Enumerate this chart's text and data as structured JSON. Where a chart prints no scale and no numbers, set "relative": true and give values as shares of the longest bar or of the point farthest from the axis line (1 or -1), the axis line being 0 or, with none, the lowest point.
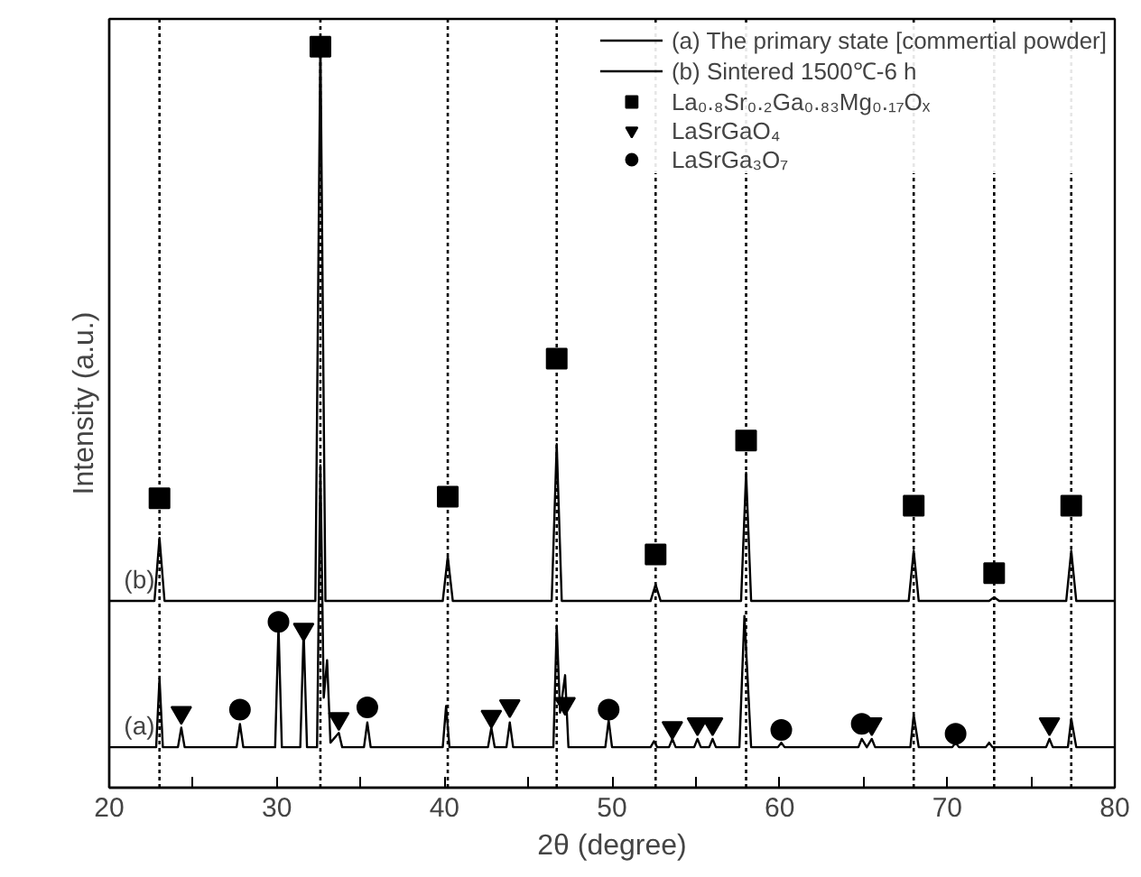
{
  "chart_data": {
    "type": "line",
    "relative": true,
    "xlabel": "2θ (degree)",
    "ylabel": "Intensity (a.u.)",
    "xlim": [
      20,
      80
    ],
    "xticks": [
      20,
      {
        "value": 25,
        "label": null
      },
      30,
      {
        "value": 35,
        "label": null
      },
      40,
      {
        "value": 45,
        "label": null
      },
      50,
      {
        "value": 55,
        "label": null
      },
      60,
      {
        "value": 65,
        "label": null
      },
      70,
      {
        "value": 75,
        "label": null
      },
      80
    ],
    "grid": false,
    "legend": "top right",
    "series": [
      {
        "name": "(a) The primary state [commertial powder]",
        "color": "#000000",
        "x": [
          20,
          22.8,
          23.0,
          23.2,
          24.1,
          24.3,
          24.5,
          27.6,
          27.8,
          28.0,
          29.9,
          30.1,
          30.3,
          31.4,
          31.6,
          31.8,
          32.4,
          32.6,
          32.8,
          33.0,
          33.2,
          33.7,
          33.9,
          35.2,
          35.4,
          35.6,
          39.9,
          40.1,
          40.3,
          42.6,
          42.8,
          43.0,
          43.7,
          43.9,
          44.1,
          46.5,
          46.7,
          46.9,
          47.2,
          47.4,
          49.6,
          49.8,
          50.0,
          52.3,
          52.5,
          52.7,
          53.4,
          53.6,
          53.8,
          54.9,
          55.1,
          55.3,
          55.8,
          56.0,
          56.2,
          57.6,
          57.9,
          58.3,
          59.9,
          60.1,
          60.3,
          64.7,
          64.9,
          65.2,
          65.5,
          65.7,
          67.8,
          68.0,
          68.3,
          70.3,
          70.5,
          70.7,
          72.3,
          72.5,
          72.7,
          75.9,
          76.1,
          76.3,
          77.2,
          77.4,
          77.7,
          80
        ],
        "values": [
          0.054,
          0.054,
          0.146,
          0.054,
          0.054,
          0.08,
          0.054,
          0.054,
          0.085,
          0.054,
          0.054,
          0.216,
          0.054,
          0.054,
          0.209,
          0.054,
          0.054,
          0.43,
          0.12,
          0.17,
          0.06,
          0.073,
          0.054,
          0.054,
          0.087,
          0.054,
          0.054,
          0.109,
          0.054,
          0.054,
          0.08,
          0.054,
          0.054,
          0.087,
          0.054,
          0.054,
          0.216,
          0.1,
          0.15,
          0.054,
          0.054,
          0.09,
          0.054,
          0.054,
          0.062,
          0.054,
          0.054,
          0.065,
          0.054,
          0.054,
          0.065,
          0.054,
          0.054,
          0.065,
          0.054,
          0.054,
          0.229,
          0.054,
          0.054,
          0.06,
          0.054,
          0.054,
          0.065,
          0.054,
          0.065,
          0.054,
          0.054,
          0.097,
          0.054,
          0.054,
          0.06,
          0.054,
          0.054,
          0.06,
          0.054,
          0.054,
          0.065,
          0.054,
          0.054,
          0.092,
          0.054,
          0.054
        ]
      },
      {
        "name": "(b) Sintered 1500℃-6 h",
        "color": "#000000",
        "x": [
          20,
          22.7,
          23.0,
          23.3,
          32.3,
          32.6,
          32.9,
          39.9,
          40.2,
          40.5,
          46.4,
          46.7,
          47.0,
          52.3,
          52.6,
          52.9,
          57.7,
          58.0,
          58.3,
          67.7,
          68.0,
          68.3,
          72.5,
          72.8,
          73.1,
          77.1,
          77.4,
          77.7,
          80
        ],
        "values": [
          0.249,
          0.249,
          0.333,
          0.249,
          0.249,
          1,
          0.249,
          0.249,
          0.308,
          0.249,
          0.249,
          0.458,
          0.249,
          0.249,
          0.271,
          0.249,
          0.249,
          0.42,
          0.249,
          0.249,
          0.316,
          0.249,
          0.249,
          0.254,
          0.249,
          0.249,
          0.316,
          0.249,
          0.249
        ]
      },
      {
        "type": "scatter",
        "marker": "square",
        "name": "La₀.₈Sr₀.₂Ga₀.₈₃Mg₀.₁₇Oₓ",
        "color": "#000000",
        "x": [
          23.0,
          32.6,
          40.2,
          46.7,
          52.6,
          58.0,
          68.0,
          72.8,
          77.4
        ],
        "values": [
          0.386,
          0.988,
          0.388,
          0.572,
          0.311,
          0.463,
          0.376,
          0.286,
          0.376
        ]
      },
      {
        "type": "scatter",
        "marker": "triangle",
        "name": "LaSrGaO₄",
        "color": "#000000",
        "x": [
          24.3,
          31.6,
          33.7,
          42.8,
          43.9,
          47.2,
          53.6,
          55.1,
          56.0,
          65.5,
          76.1
        ],
        "values": [
          0.1,
          0.211,
          0.092,
          0.095,
          0.109,
          0.112,
          0.08,
          0.085,
          0.085,
          0.085,
          0.085
        ]
      },
      {
        "type": "scatter",
        "marker": "circle",
        "name": "LaSrGa₃O₇",
        "color": "#000000",
        "x": [
          27.8,
          30.1,
          35.4,
          49.8,
          60.1,
          64.9,
          70.5
        ],
        "values": [
          0.104,
          0.221,
          0.107,
          0.104,
          0.077,
          0.085,
          0.072
        ]
      }
    ],
    "ref_lines": [
      {
        "axis": "x",
        "value": 23.0,
        "line_style": "dotted"
      },
      {
        "axis": "x",
        "value": 32.6,
        "line_style": "dotted"
      },
      {
        "axis": "x",
        "value": 40.2,
        "line_style": "dotted"
      },
      {
        "axis": "x",
        "value": 46.7,
        "line_style": "dotted"
      },
      {
        "axis": "x",
        "value": 52.6,
        "line_style": "dotted"
      },
      {
        "axis": "x",
        "value": 58.0,
        "line_style": "dotted"
      },
      {
        "axis": "x",
        "value": 68.0,
        "line_style": "dotted"
      },
      {
        "axis": "x",
        "value": 72.8,
        "line_style": "dotted"
      },
      {
        "axis": "x",
        "value": 77.4,
        "line_style": "dotted"
      }
    ],
    "annotations": [
      {
        "text": "(b)",
        "x": 21.8,
        "y": 0.249
      },
      {
        "text": "(a)",
        "x": 21.8,
        "y": 0.054
      }
    ]
  }
}
